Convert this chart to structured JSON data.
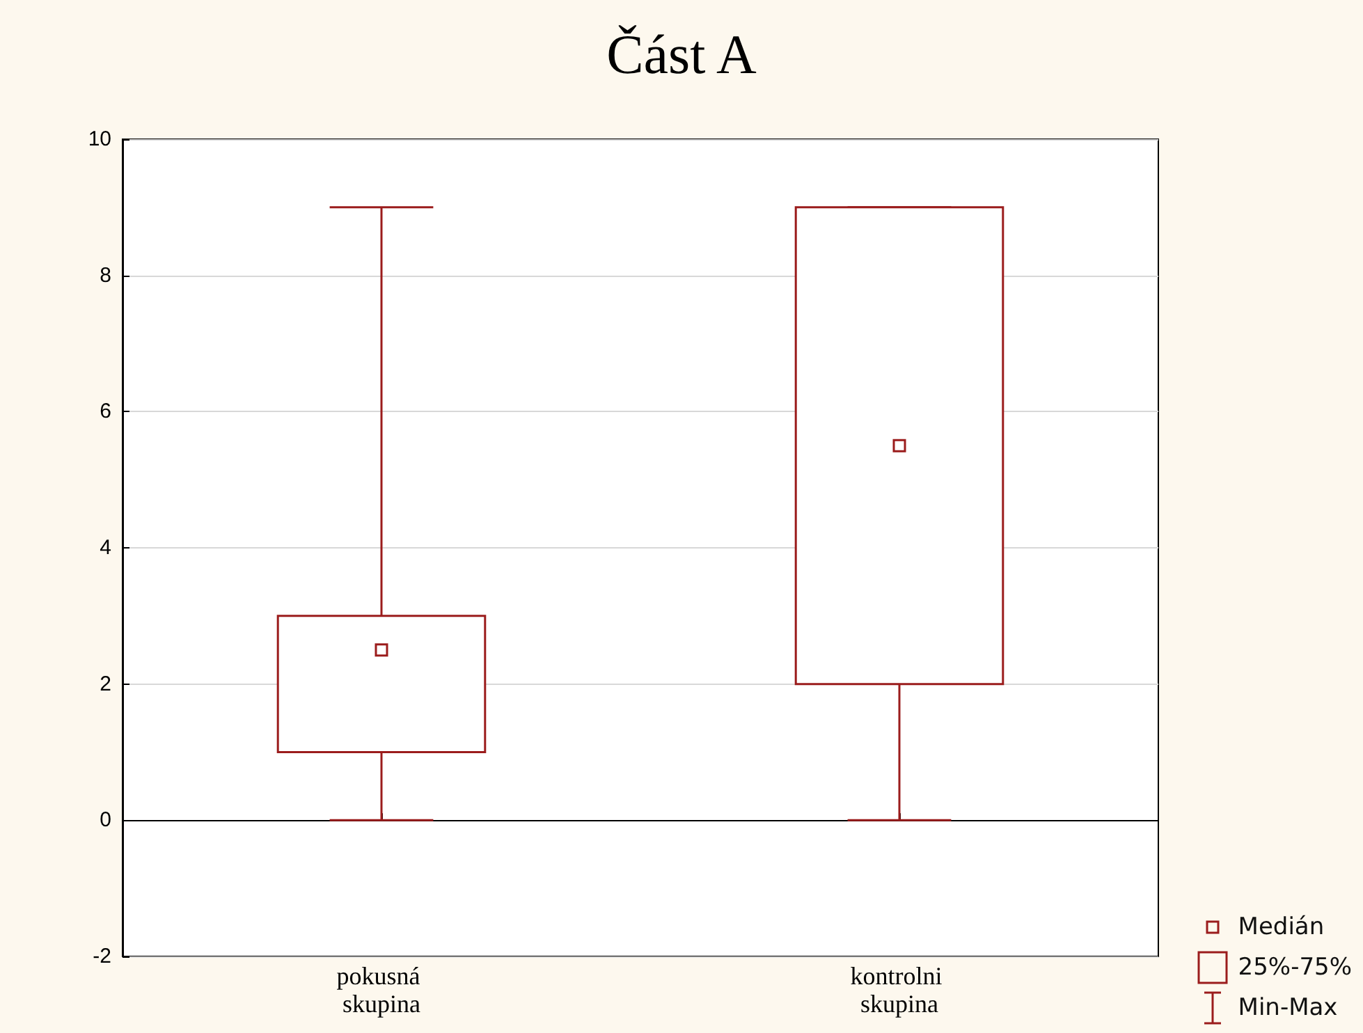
{
  "chart_data": {
    "type": "box",
    "title": "Část A",
    "categories": [
      "pokusná skupina",
      "kontrolni skupina"
    ],
    "series": [
      {
        "color": "#9b1c1c",
        "boxes": [
          {
            "low": 0,
            "q1": 1,
            "median": 2.5,
            "q3": 3,
            "high": 9
          },
          {
            "low": 0,
            "q1": 2,
            "median": 5.5,
            "q3": 9,
            "high": 9
          }
        ]
      }
    ],
    "ylim": [
      -2,
      10
    ],
    "yticks": [
      -2,
      0,
      2,
      4,
      6,
      8,
      10
    ],
    "grid": "y",
    "annotations": [
      "Medián",
      "25%-75%",
      "Min-Max"
    ]
  }
}
